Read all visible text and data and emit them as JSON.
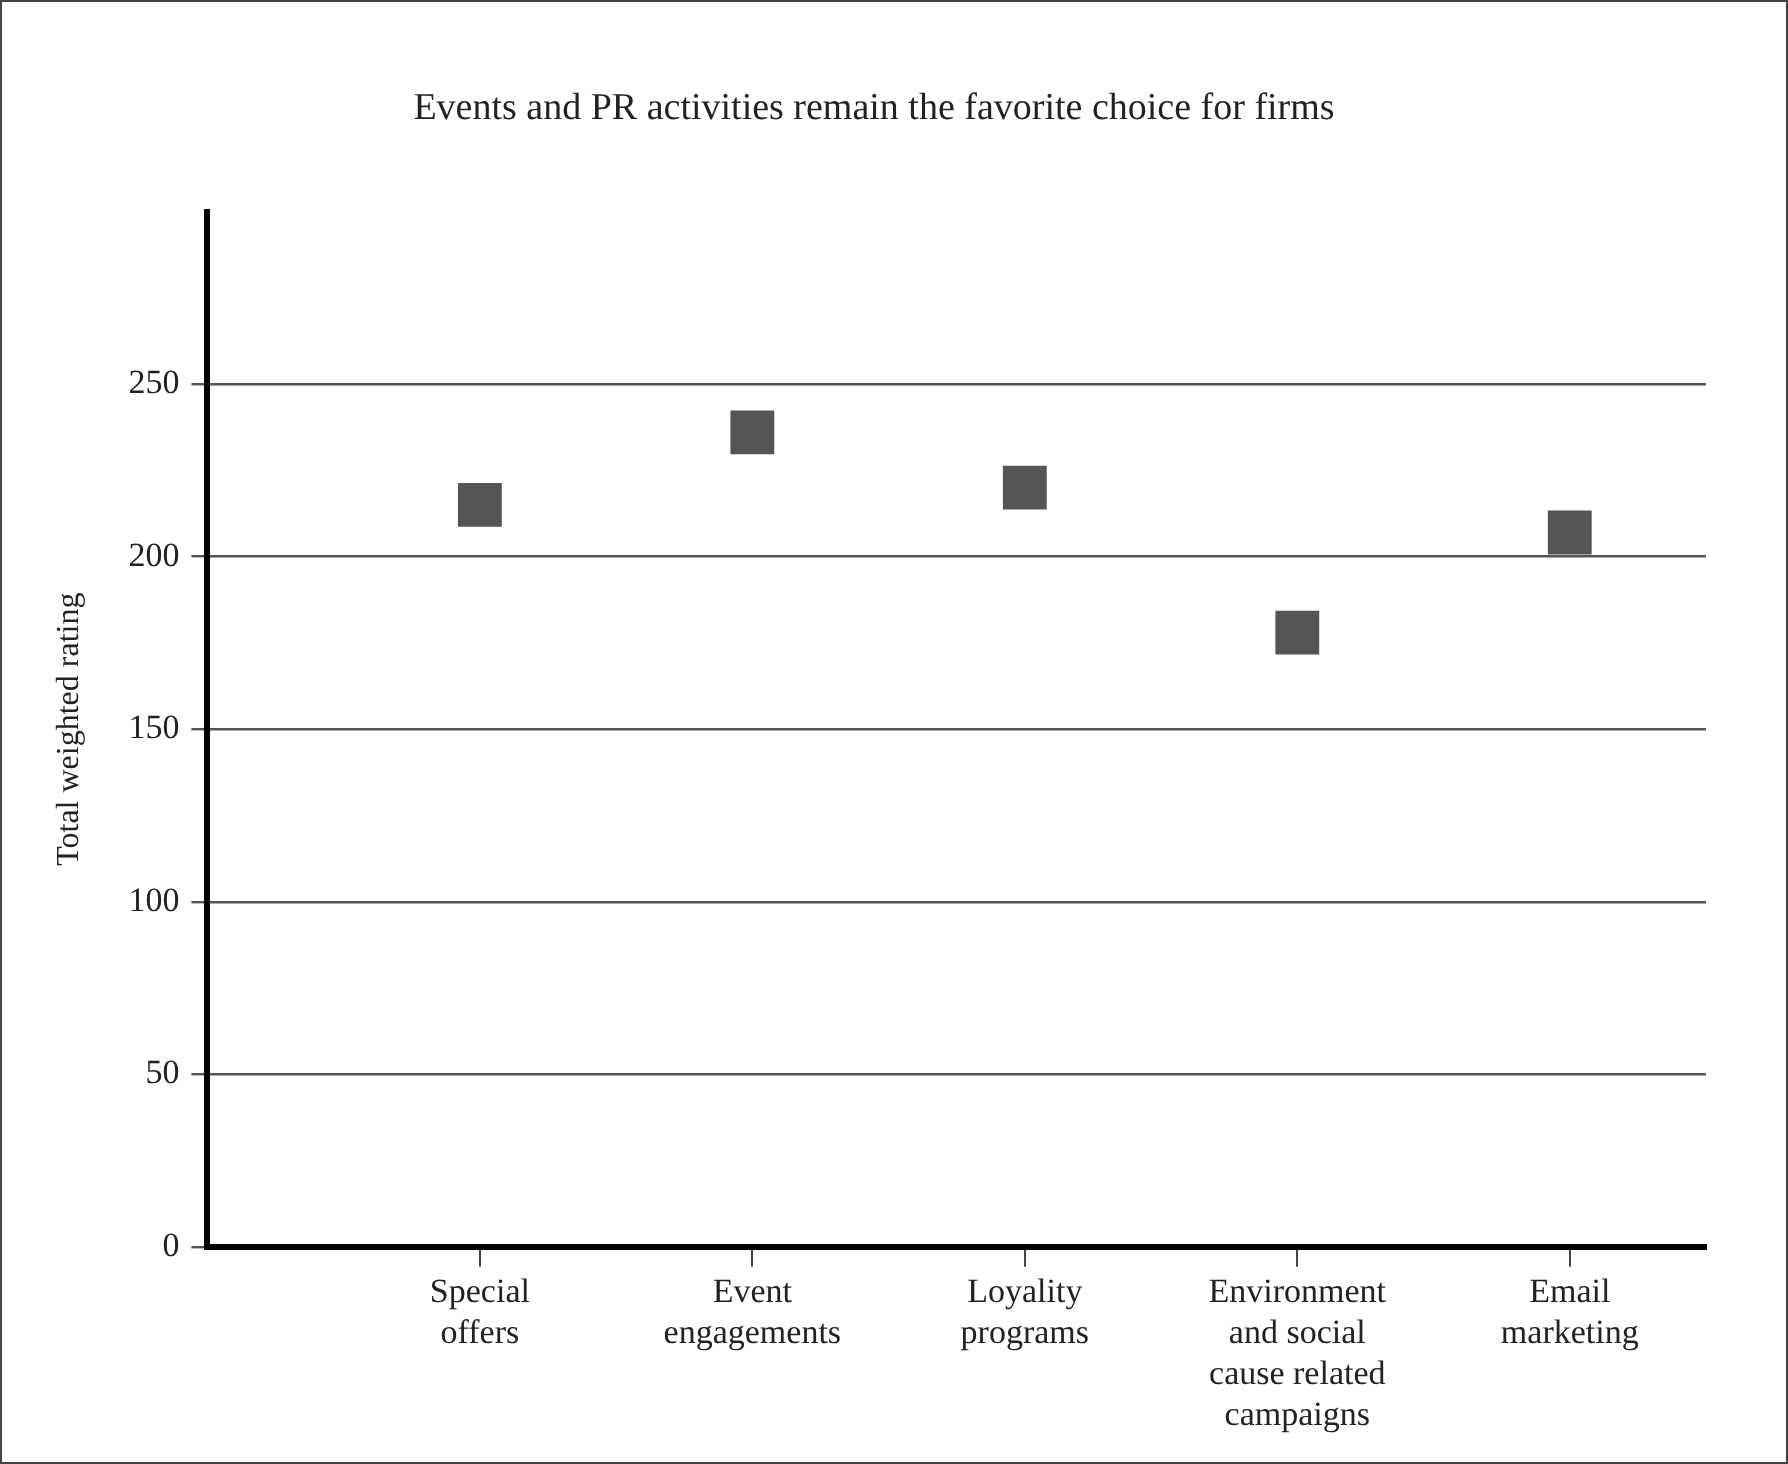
{
  "chart_data": {
    "type": "scatter",
    "title": "Events and PR activities remain the favorite choice for firms",
    "ylabel": "Total weighted rating",
    "categories": [
      "Special offers",
      "Event engagements",
      "Loyality programs",
      "Environment and social cause related campaigns",
      "Email marketing"
    ],
    "values": [
      215,
      236,
      220,
      178,
      207
    ],
    "color": "#555555",
    "marker": "square",
    "ylim": [
      0,
      300
    ],
    "yticks": [
      0,
      50,
      100,
      150,
      200,
      250
    ],
    "grid": "y",
    "legend": false
  }
}
